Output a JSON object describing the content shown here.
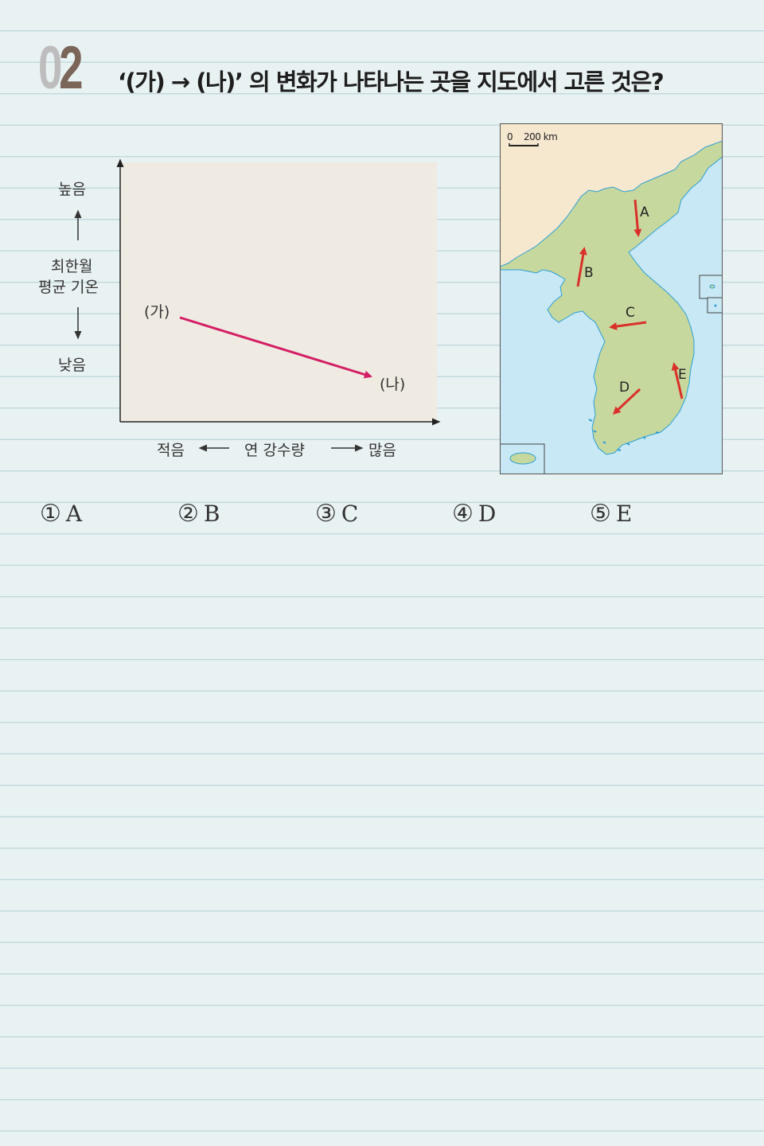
{
  "question": {
    "number": "02",
    "number_digit0": "0",
    "number_digit1": "2",
    "text": "‘(가) → (나)’ 의 변화가 나타나는 곳을 지도에서 고른 것은?"
  },
  "graph": {
    "y_high": "높음",
    "y_title_line1": "최한월",
    "y_title_line2": "평균  기온",
    "y_low": "낮음",
    "x_low": "적음",
    "x_title": "연  강수량",
    "x_high": "많음",
    "point_start": "(가)",
    "point_end": "(나)",
    "arrow_color": "#d41e63",
    "plot_bg": "#efebe2"
  },
  "map": {
    "scale_zero": "0",
    "scale_label": "200 km",
    "sea_color": "#c8e8f5",
    "land_color": "#c7d89e",
    "foreign_land_color": "#f6e7cf",
    "arrow_color": "#d9312a",
    "labels": [
      "A",
      "B",
      "C",
      "D",
      "E"
    ]
  },
  "choices": [
    {
      "circle": "①",
      "label": "A"
    },
    {
      "circle": "②",
      "label": "B"
    },
    {
      "circle": "③",
      "label": "C"
    },
    {
      "circle": "④",
      "label": "D"
    },
    {
      "circle": "⑤",
      "label": "E"
    }
  ]
}
